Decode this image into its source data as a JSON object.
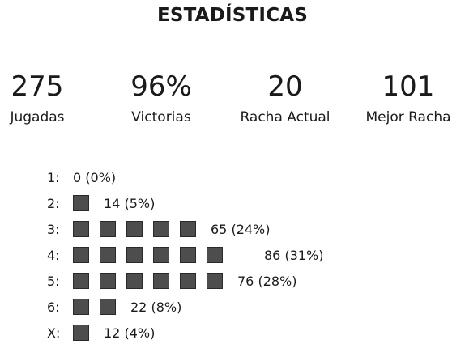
{
  "title": "ESTADÍSTICAS",
  "stats": [
    {
      "value": "275",
      "label": "Jugadas"
    },
    {
      "value": "96%",
      "label": "Victorias"
    },
    {
      "value": "20",
      "label": "Racha Actual"
    },
    {
      "value": "101",
      "label": "Mejor Racha"
    }
  ],
  "distribution": [
    {
      "label": "1:",
      "count": 0,
      "text": "0 (0%)",
      "squares": 0
    },
    {
      "label": "2:",
      "count": 14,
      "text": "14 (5%)",
      "squares": 1
    },
    {
      "label": "3:",
      "count": 65,
      "text": "65 (24%)",
      "squares": 5
    },
    {
      "label": "4:",
      "count": 86,
      "text": "86 (31%)",
      "squares": 6
    },
    {
      "label": "5:",
      "count": 76,
      "text": "76 (28%)",
      "squares": 6
    },
    {
      "label": "6:",
      "count": 22,
      "text": "22 (8%)",
      "squares": 2
    },
    {
      "label": "X:",
      "count": 12,
      "text": "12 (4%)",
      "squares": 1
    }
  ],
  "colors": {
    "square_fill": "#4d4d4d",
    "text": "#1a1a1a"
  }
}
